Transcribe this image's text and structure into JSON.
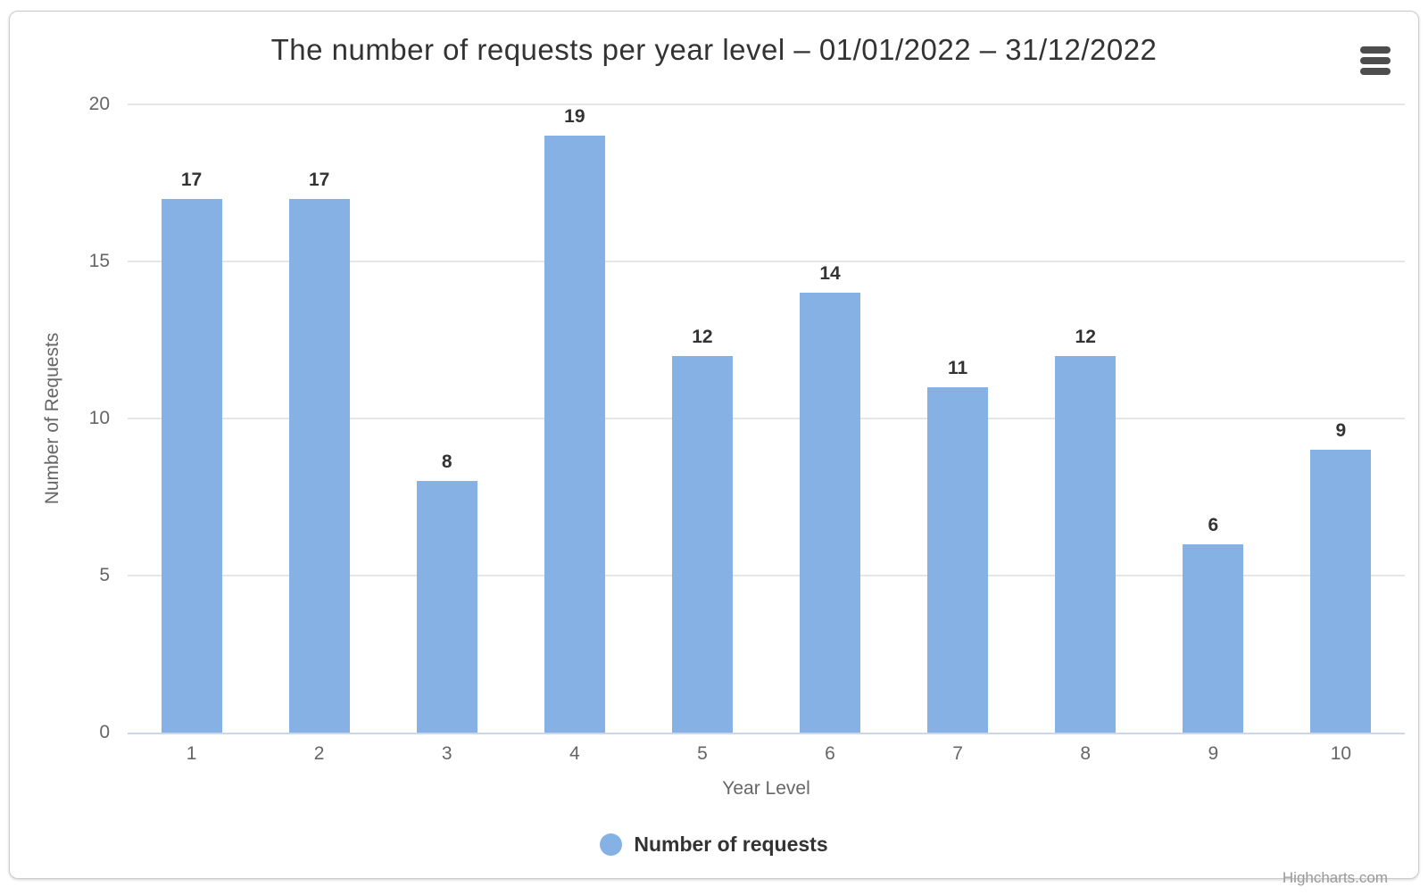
{
  "chart": {
    "credits": "Highcharts.com",
    "colors": {
      "bar": "#86b1e5",
      "grid": "#e6e6e6",
      "axis_line": "#ccd6eb",
      "tick_label": "#666666",
      "title_text": "#333333",
      "credits_text": "#999999",
      "menu_icon": "#4d4d4d",
      "border": "#cccccc"
    }
  },
  "chart_data": {
    "type": "bar",
    "title": "The number of requests per year level – 01/01/2022 – 31/12/2022",
    "categories": [
      "1",
      "2",
      "3",
      "4",
      "5",
      "6",
      "7",
      "8",
      "9",
      "10"
    ],
    "series": [
      {
        "name": "Number of requests",
        "values": [
          17,
          17,
          8,
          19,
          12,
          14,
          11,
          12,
          6,
          9
        ]
      }
    ],
    "values": [
      17,
      17,
      8,
      19,
      12,
      14,
      11,
      12,
      6,
      9
    ],
    "xlabel": "Year Level",
    "ylabel": "Number of Requests",
    "ylim": [
      0,
      20
    ],
    "yticks": [
      0,
      5,
      10,
      15,
      20
    ],
    "grid": true,
    "data_labels": true,
    "legend": {
      "label": "Number of requests",
      "position": "bottom"
    }
  }
}
